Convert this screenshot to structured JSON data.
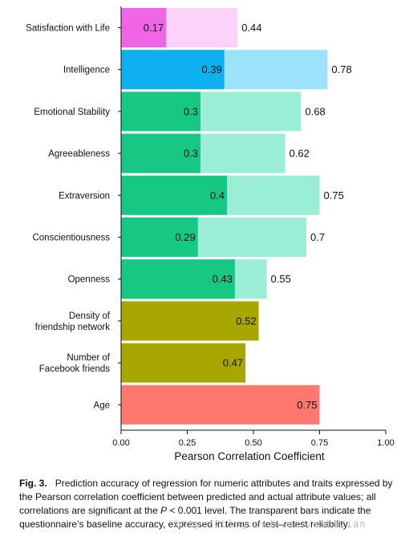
{
  "chart_data": {
    "type": "bar",
    "orientation": "horizontal",
    "xlabel": "Pearson Correlation Coefficient",
    "xlim": [
      0,
      1
    ],
    "xticks": [
      "0.00",
      "0.25",
      "0.50",
      "0.75",
      "1.00"
    ],
    "tick_values": [
      0,
      0.25,
      0.5,
      0.75,
      1.0
    ],
    "grid": false,
    "categories": [
      {
        "label": [
          "Satisfaction with Life"
        ],
        "value": 0.17,
        "value_label": "0.17",
        "baseline": 0.44,
        "baseline_label": "0.44",
        "color": "#f064e6",
        "baseline_color": "#fcd2fb"
      },
      {
        "label": [
          "Intelligence"
        ],
        "value": 0.39,
        "value_label": "0.39",
        "baseline": 0.78,
        "baseline_label": "0.78",
        "color": "#0fb0f0",
        "baseline_color": "#9be3fa"
      },
      {
        "label": [
          "Emotional Stability"
        ],
        "value": 0.3,
        "value_label": "0.3",
        "baseline": 0.68,
        "baseline_label": "0.68",
        "color": "#17c784",
        "baseline_color": "#9aeed6"
      },
      {
        "label": [
          "Agreeableness"
        ],
        "value": 0.3,
        "value_label": "0.3",
        "baseline": 0.62,
        "baseline_label": "0.62",
        "color": "#17c784",
        "baseline_color": "#9aeed6"
      },
      {
        "label": [
          "Extraversion"
        ],
        "value": 0.4,
        "value_label": "0.4",
        "baseline": 0.75,
        "baseline_label": "0.75",
        "color": "#17c784",
        "baseline_color": "#9aeed6"
      },
      {
        "label": [
          "Conscientiousness"
        ],
        "value": 0.29,
        "value_label": "0.29",
        "baseline": 0.7,
        "baseline_label": "0.7",
        "color": "#17c784",
        "baseline_color": "#9aeed6"
      },
      {
        "label": [
          "Openness"
        ],
        "value": 0.43,
        "value_label": "0.43",
        "baseline": 0.55,
        "baseline_label": "0.55",
        "color": "#17c784",
        "baseline_color": "#9aeed6"
      },
      {
        "label": [
          "Density of",
          "friendship network"
        ],
        "value": 0.52,
        "value_label": "0.52",
        "baseline": null,
        "baseline_label": null,
        "color": "#a8a600",
        "baseline_color": null
      },
      {
        "label": [
          "Number of",
          "Facebook friends"
        ],
        "value": 0.47,
        "value_label": "0.47",
        "baseline": null,
        "baseline_label": null,
        "color": "#a8a600",
        "baseline_color": null
      },
      {
        "label": [
          "Age"
        ],
        "value": 0.75,
        "value_label": "0.75",
        "baseline": null,
        "baseline_label": null,
        "color": "#ff7870",
        "baseline_color": null
      }
    ]
  },
  "caption": {
    "label": "Fig. 3.",
    "text_before": "Prediction accuracy of regression for numeric attributes and traits expressed by the Pearson correlation coefficient between predicted and actual attribute values; all correlations are significant at the",
    "p_symbol": "P",
    "text_after": "< 0.001 level. The transparent bars indicate the questionnaire’s baseline accuracy, expressed in terms of test–retest reliability."
  },
  "watermark": "http://blog.csdn.net/sohu/ian"
}
